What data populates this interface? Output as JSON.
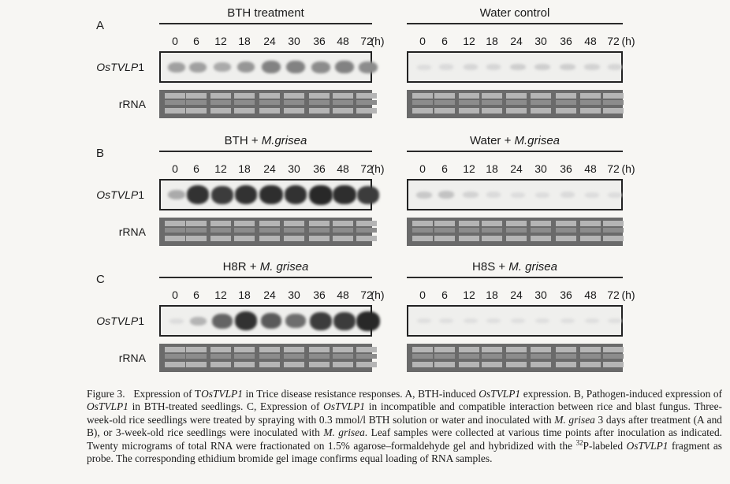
{
  "panels": [
    {
      "letter": "A",
      "left_title": "BTH treatment",
      "right_title": "Water control",
      "left_intensity": [
        0.35,
        0.35,
        0.3,
        0.4,
        0.5,
        0.5,
        0.45,
        0.5,
        0.45
      ],
      "right_intensity": [
        0.05,
        0.06,
        0.08,
        0.08,
        0.12,
        0.12,
        0.12,
        0.1,
        0.08
      ]
    },
    {
      "letter": "B",
      "left_title": "BTH + M.grisea",
      "right_title": "Water + M.grisea",
      "left_intensity": [
        0.3,
        0.9,
        0.85,
        0.9,
        0.92,
        0.9,
        0.95,
        0.92,
        0.85
      ],
      "right_intensity": [
        0.15,
        0.18,
        0.1,
        0.06,
        0.05,
        0.05,
        0.06,
        0.05,
        0.05
      ]
    },
    {
      "letter": "C",
      "left_title": "H8R + M. grisea",
      "right_title": "H8S + M. grisea",
      "left_intensity": [
        0.05,
        0.25,
        0.65,
        0.9,
        0.7,
        0.6,
        0.85,
        0.85,
        0.95
      ],
      "right_intensity": [
        0.04,
        0.04,
        0.04,
        0.04,
        0.04,
        0.04,
        0.04,
        0.04,
        0.04
      ]
    }
  ],
  "time_points": [
    "0",
    "6",
    "12",
    "18",
    "24",
    "30",
    "36",
    "48",
    "72"
  ],
  "time_unit": "(h)",
  "row_labels": {
    "gene": "OsTVLP1",
    "gene_italic": "OsTVLP",
    "gene_suffix": "1",
    "rrna": "rRNA"
  },
  "caption": {
    "lead": "Figure 3.",
    "text": "Expression of TOsTVLP1 in Trice disease resistance responses. A, BTH-induced OsTVLP1 expression. B, Pathogen-induced expression of OsTVLP1 in BTH-treated seedlings. C, Expression of OsTVLP1 in incompatible and compatible interaction between rice and blast fungus. Three-week-old rice seedlings were treated by spraying with 0.3 mmol/l BTH solution or water and inoculated with M. grisea 3 days after treatment (A and B), or 3-week-old rice seedlings were inoculated with M. grisea. Leaf samples were collected at various time points after inoculation as indicated. Twenty micrograms of total RNA were fractionated on 1.5% agarose–formaldehyde gel and hybridized with the 32P-labeled OsTVLP1 fragment as probe. The corresponding ethidium bromide gel image confirms equal loading of RNA samples."
  }
}
